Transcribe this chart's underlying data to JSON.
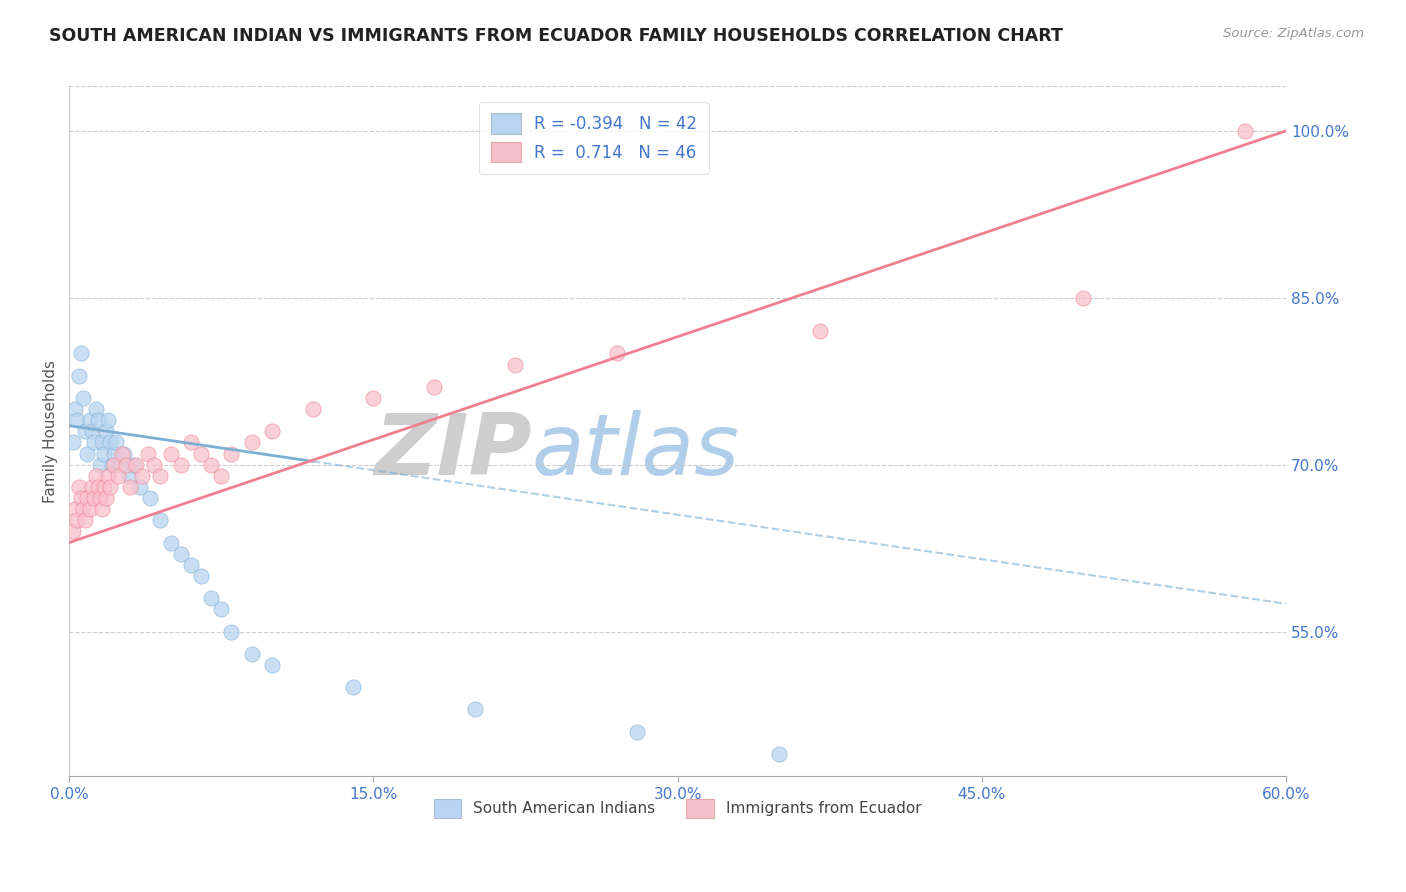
{
  "title": "SOUTH AMERICAN INDIAN VS IMMIGRANTS FROM ECUADOR FAMILY HOUSEHOLDS CORRELATION CHART",
  "source": "Source: ZipAtlas.com",
  "ylabel": "Family Households",
  "series": [
    {
      "label": "South American Indians",
      "color": "#7BAFD4",
      "fill_color": "#B8D4F0",
      "R": -0.394,
      "N": 42,
      "x": [
        0.2,
        0.3,
        0.4,
        0.5,
        0.6,
        0.7,
        0.8,
        0.9,
        1.0,
        1.1,
        1.2,
        1.3,
        1.4,
        1.5,
        1.6,
        1.7,
        1.8,
        1.9,
        2.0,
        2.1,
        2.2,
        2.3,
        2.5,
        2.7,
        3.0,
        3.2,
        3.5,
        4.0,
        4.5,
        5.0,
        5.5,
        6.0,
        6.5,
        7.0,
        7.5,
        8.0,
        9.0,
        10.0,
        14.0,
        20.0,
        28.0,
        35.0
      ],
      "y": [
        72,
        75,
        74,
        78,
        80,
        76,
        73,
        71,
        74,
        73,
        72,
        75,
        74,
        70,
        72,
        71,
        73,
        74,
        72,
        70,
        71,
        72,
        70,
        71,
        69,
        70,
        68,
        67,
        65,
        63,
        62,
        61,
        60,
        58,
        57,
        55,
        53,
        52,
        50,
        48,
        46,
        44
      ]
    },
    {
      "label": "Immigrants from Ecuador",
      "color": "#F08090",
      "fill_color": "#F8C0CC",
      "R": 0.714,
      "N": 46,
      "x": [
        0.2,
        0.3,
        0.4,
        0.5,
        0.6,
        0.7,
        0.8,
        0.9,
        1.0,
        1.1,
        1.2,
        1.3,
        1.4,
        1.5,
        1.6,
        1.7,
        1.8,
        1.9,
        2.0,
        2.2,
        2.4,
        2.6,
        2.8,
        3.0,
        3.3,
        3.6,
        3.9,
        4.2,
        4.5,
        5.0,
        5.5,
        6.0,
        6.5,
        7.0,
        7.5,
        8.0,
        9.0,
        10.0,
        12.0,
        15.0,
        18.0,
        22.0,
        27.0,
        37.0,
        50.0,
        58.0
      ],
      "y": [
        64,
        66,
        65,
        68,
        67,
        66,
        65,
        67,
        66,
        68,
        67,
        69,
        68,
        67,
        66,
        68,
        67,
        69,
        68,
        70,
        69,
        71,
        70,
        68,
        70,
        69,
        71,
        70,
        69,
        71,
        70,
        72,
        71,
        70,
        69,
        71,
        72,
        73,
        75,
        76,
        77,
        79,
        80,
        82,
        85,
        100
      ]
    }
  ],
  "blue_line": {
    "x0": 0,
    "y0": 73.5,
    "x1": 60,
    "y1": 57.5
  },
  "pink_line": {
    "x0": 0,
    "y0": 63.0,
    "x1": 60,
    "y1": 100.0
  },
  "blue_solid_end": 12.0,
  "blue_dashed_start": 12.0,
  "xlim": [
    0,
    60
  ],
  "ylim": [
    42,
    104
  ],
  "yticks": [
    55,
    70,
    85,
    100
  ],
  "ytick_labels": [
    "55.0%",
    "70.0%",
    "85.0%",
    "100.0%"
  ],
  "xticks": [
    0,
    15,
    30,
    45,
    60
  ],
  "xtick_labels": [
    "0.0%",
    "15.0%",
    "30.0%",
    "45.0%",
    "60.0%"
  ],
  "grid_color": "#CCCCCC",
  "background_color": "#FFFFFF",
  "title_color": "#222222",
  "axis_label_color": "#555555",
  "tick_label_color": "#4477CC",
  "source_color": "#999999",
  "legend_R_color": "#4477CC"
}
